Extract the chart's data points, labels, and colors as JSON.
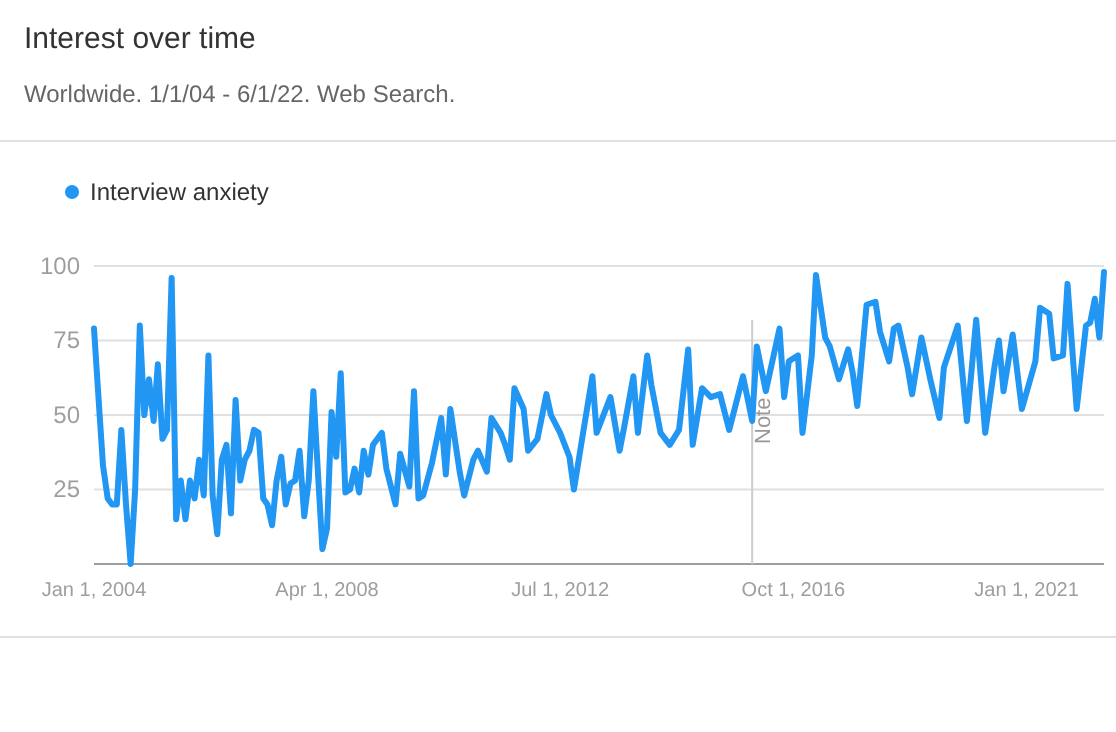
{
  "chart_data": {
    "type": "line",
    "title": "Interest over time",
    "subtitle": "Worldwide. 1/1/04 - 6/1/22. Web Search.",
    "x": [
      "2004-01",
      "2004-02",
      "2004-03",
      "2004-04",
      "2004-05",
      "2004-06",
      "2004-07",
      "2004-08",
      "2004-09",
      "2004-10",
      "2004-11",
      "2004-12",
      "2005-01",
      "2005-02",
      "2005-03",
      "2005-04",
      "2005-05",
      "2005-06",
      "2005-07",
      "2005-08",
      "2005-09",
      "2005-10",
      "2005-11",
      "2005-12",
      "2006-01",
      "2006-02",
      "2006-03",
      "2006-04",
      "2006-05",
      "2006-06",
      "2006-07",
      "2006-08",
      "2006-09",
      "2006-10",
      "2006-11",
      "2006-12",
      "2007-01",
      "2007-02",
      "2007-03",
      "2007-04",
      "2007-05",
      "2007-06",
      "2007-07",
      "2007-08",
      "2007-09",
      "2007-10",
      "2007-11",
      "2007-12",
      "2008-01",
      "2008-02",
      "2008-03",
      "2008-04",
      "2008-05",
      "2008-06",
      "2008-07",
      "2008-08",
      "2008-09",
      "2008-10",
      "2008-11",
      "2008-12",
      "2009-01",
      "2009-02",
      "2009-04",
      "2009-05",
      "2009-07",
      "2009-08",
      "2009-10",
      "2009-11",
      "2009-12",
      "2010-01",
      "2010-03",
      "2010-05",
      "2010-06",
      "2010-07",
      "2010-09",
      "2010-10",
      "2010-12",
      "2011-01",
      "2011-03",
      "2011-04",
      "2011-06",
      "2011-07",
      "2011-08",
      "2011-09",
      "2011-11",
      "2011-12",
      "2012-02",
      "2012-04",
      "2012-05",
      "2012-07",
      "2012-09",
      "2012-10",
      "2012-12",
      "2013-02",
      "2013-03",
      "2013-06",
      "2013-08",
      "2013-09",
      "2013-11",
      "2013-12",
      "2014-02",
      "2014-03",
      "2014-05",
      "2014-07",
      "2014-09",
      "2014-11",
      "2014-12",
      "2015-02",
      "2015-04",
      "2015-06",
      "2015-08",
      "2015-11",
      "2016-01",
      "2016-02",
      "2016-04",
      "2016-07",
      "2016-08",
      "2016-09",
      "2016-11",
      "2016-12",
      "2017-02",
      "2017-03",
      "2017-05",
      "2017-06",
      "2017-08",
      "2017-10",
      "2017-11",
      "2017-12",
      "2018-02",
      "2018-04",
      "2018-05",
      "2018-07",
      "2018-08",
      "2018-09",
      "2018-11",
      "2018-12",
      "2019-02",
      "2019-04",
      "2019-06",
      "2019-07",
      "2019-10",
      "2019-12",
      "2020-02",
      "2020-04",
      "2020-06",
      "2020-07",
      "2020-08",
      "2020-10",
      "2020-12",
      "2021-03",
      "2021-04",
      "2021-06",
      "2021-07",
      "2021-09",
      "2021-10",
      "2021-12",
      "2022-02",
      "2022-03",
      "2022-04",
      "2022-05",
      "2022-06"
    ],
    "series": [
      {
        "name": "Interview anxiety",
        "color": "#2196f3",
        "values": [
          79,
          55,
          33,
          22,
          20,
          20,
          45,
          20,
          0,
          25,
          80,
          50,
          62,
          48,
          67,
          42,
          45,
          96,
          15,
          28,
          15,
          28,
          22,
          35,
          23,
          70,
          23,
          10,
          35,
          40,
          17,
          55,
          28,
          35,
          38,
          45,
          44,
          22,
          20,
          13,
          28,
          36,
          20,
          27,
          28,
          38,
          16,
          28,
          58,
          30,
          5,
          12,
          51,
          36,
          64,
          24,
          25,
          32,
          24,
          38,
          30,
          40,
          44,
          32,
          20,
          37,
          26,
          58,
          22,
          23,
          34,
          49,
          30,
          52,
          31,
          23,
          35,
          38,
          31,
          49,
          44,
          40,
          35,
          59,
          52,
          38,
          42,
          57,
          50,
          44,
          36,
          25,
          44,
          63,
          44,
          56,
          38,
          46,
          63,
          44,
          70,
          60,
          44,
          40,
          45,
          72,
          40,
          59,
          56,
          57,
          45,
          63,
          48,
          73,
          58,
          79,
          56,
          68,
          70,
          44,
          70,
          97,
          76,
          73,
          62,
          72,
          64,
          53,
          87,
          88,
          78,
          68,
          79,
          80,
          66,
          57,
          76,
          62,
          49,
          66,
          80,
          48,
          82,
          44,
          66,
          75,
          58,
          77,
          52,
          68,
          86,
          84,
          69,
          70,
          94,
          52,
          80,
          81,
          89,
          76,
          98
        ]
      }
    ],
    "xlim": [
      "2004-01",
      "2022-06"
    ],
    "xticks": [
      {
        "value": "2004-01-01",
        "label": "Jan 1, 2004"
      },
      {
        "value": "2008-04-01",
        "label": "Apr 1, 2008"
      },
      {
        "value": "2012-07-01",
        "label": "Jul 1, 2012"
      },
      {
        "value": "2016-10-01",
        "label": "Oct 1, 2016"
      },
      {
        "value": "2021-01-01",
        "label": "Jan 1, 2021"
      }
    ],
    "ylim": [
      0,
      100
    ],
    "yticks": [
      25,
      50,
      75,
      100
    ],
    "grid": "y",
    "legend": "top left",
    "marker": "none",
    "line_style": "solid",
    "ref_lines": [
      {
        "axis": "x",
        "value": "2016-01-01",
        "label": "Note",
        "color": "#cccccc"
      }
    ]
  }
}
